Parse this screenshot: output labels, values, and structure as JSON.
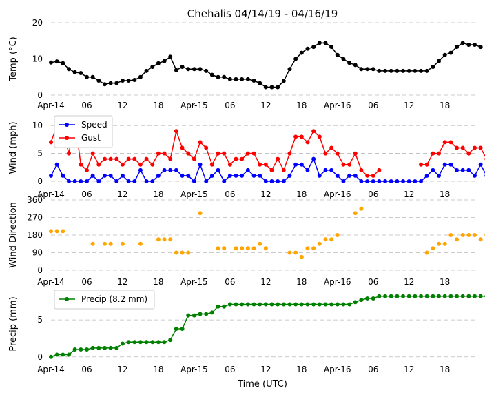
{
  "chart_data": {
    "title": "Chehalis 04/14/19 - 04/16/19",
    "xlabel": "Time (UTC)",
    "x_start": "2019-04-14 00:00",
    "x_end": "2019-04-16 23:00",
    "x_tick_labels": [
      "Apr-14",
      "06",
      "12",
      "18",
      "Apr-15",
      "06",
      "12",
      "18",
      "Apr-16",
      "06",
      "12",
      "18"
    ],
    "grid": "horizontal dashed",
    "panels": [
      {
        "id": "temp",
        "type": "line",
        "ylabel": "Temp ($^\\circ$C)",
        "ylabel_text": "Temp (°C)",
        "ylim": [
          0,
          20
        ],
        "yticks": [
          0,
          10,
          20
        ],
        "series": [
          {
            "color": "#000000",
            "values": [
              9,
              9.3,
              8.8,
              7.2,
              6.3,
              6.1,
              5,
              5,
              4,
              3,
              3.3,
              3.3,
              4,
              4,
              4.2,
              5,
              6.7,
              7.8,
              8.8,
              9.4,
              10.6,
              6.9,
              7.8,
              7.2,
              7.2,
              7.2,
              6.7,
              5.6,
              5,
              5,
              4.4,
              4.4,
              4.4,
              4.4,
              4,
              3.3,
              2.2,
              2.2,
              2.2,
              3.9,
              7.2,
              10,
              11.7,
              12.8,
              13.3,
              14.4,
              14.4,
              13.3,
              11.1,
              10,
              8.9,
              8.3,
              7.2,
              7.2,
              7.2,
              6.7,
              6.7,
              6.7,
              6.7,
              6.7,
              6.7,
              6.7,
              6.7,
              6.7,
              7.8,
              9.4,
              11.1,
              11.7,
              13.3,
              14.4,
              13.9,
              13.9,
              13.3
            ]
          }
        ]
      },
      {
        "id": "wind",
        "type": "line",
        "ylabel": "Wind (mph)",
        "ylim": [
          0,
          12
        ],
        "yticks": [
          0,
          5,
          10
        ],
        "legend": "top-left",
        "series": [
          {
            "name": "Speed",
            "color": "#0000ff",
            "values": [
              1,
              3,
              1,
              0,
              0,
              0,
              0,
              1,
              0,
              1,
              1,
              0,
              1,
              0,
              0,
              2,
              0,
              0,
              1,
              2,
              2,
              2,
              1,
              1,
              0,
              3,
              0,
              1,
              2,
              0,
              1,
              1,
              1,
              2,
              1,
              1,
              0,
              0,
              0,
              0,
              1,
              3,
              3,
              2,
              4,
              1,
              2,
              2,
              1,
              0,
              1,
              1,
              0,
              0,
              0,
              0,
              0,
              0,
              0,
              0,
              0,
              0,
              0,
              1,
              2,
              1,
              3,
              3,
              2,
              2,
              2,
              1,
              3,
              1
            ]
          },
          {
            "name": "Gust",
            "color": "#ff0000",
            "values": [
              7,
              10,
              9,
              5,
              11,
              3,
              2,
              5,
              3,
              4,
              4,
              4,
              3,
              4,
              4,
              3,
              4,
              3,
              5,
              5,
              4,
              9,
              6,
              5,
              4,
              7,
              6,
              3,
              5,
              5,
              3,
              4,
              4,
              5,
              5,
              3,
              3,
              2,
              4,
              2,
              5,
              8,
              8,
              7,
              9,
              8,
              5,
              6,
              5,
              3,
              3,
              5,
              2,
              1,
              1,
              2,
              null,
              null,
              null,
              null,
              null,
              null,
              3,
              3,
              5,
              5,
              7,
              7,
              6,
              6,
              5,
              6,
              6,
              4
            ]
          }
        ]
      },
      {
        "id": "dir",
        "type": "scatter",
        "ylabel": "Wind Direction",
        "ylim": [
          0,
          360
        ],
        "yticks": [
          0,
          90,
          180,
          270,
          360
        ],
        "series": [
          {
            "color": "#ffa500",
            "values": [
              200,
              200,
              200,
              null,
              null,
              null,
              null,
              135,
              null,
              135,
              135,
              null,
              135,
              null,
              null,
              135,
              null,
              null,
              158,
              158,
              158,
              90,
              90,
              90,
              null,
              292,
              null,
              null,
              112,
              112,
              null,
              112,
              112,
              112,
              112,
              135,
              112,
              null,
              null,
              null,
              90,
              90,
              68,
              112,
              112,
              135,
              158,
              158,
              180,
              null,
              null,
              292,
              315,
              null,
              null,
              null,
              null,
              null,
              null,
              null,
              null,
              null,
              null,
              90,
              112,
              135,
              135,
              180,
              158,
              180,
              180,
              180,
              158,
              180
            ]
          }
        ]
      },
      {
        "id": "precip",
        "type": "line",
        "ylabel": "Precip (mm)",
        "ylim": [
          -0.3,
          9.2
        ],
        "yticks": [
          0,
          5
        ],
        "legend": "top-left",
        "series": [
          {
            "name": "Precip (8.2 mm)",
            "color": "#008000",
            "values": [
              0,
              0.3,
              0.3,
              0.3,
              1,
              1,
              1,
              1.2,
              1.2,
              1.2,
              1.2,
              1.2,
              1.8,
              2,
              2,
              2,
              2,
              2,
              2,
              2,
              2.3,
              3.8,
              3.8,
              5.6,
              5.6,
              5.8,
              5.8,
              6,
              6.8,
              6.8,
              7.1,
              7.1,
              7.1,
              7.1,
              7.1,
              7.1,
              7.1,
              7.1,
              7.1,
              7.1,
              7.1,
              7.1,
              7.1,
              7.1,
              7.1,
              7.1,
              7.1,
              7.1,
              7.1,
              7.1,
              7.1,
              7.4,
              7.7,
              7.9,
              7.9,
              8.2,
              8.2,
              8.2,
              8.2,
              8.2,
              8.2,
              8.2,
              8.2,
              8.2,
              8.2,
              8.2,
              8.2,
              8.2,
              8.2,
              8.2,
              8.2,
              8.2,
              8.2,
              8.2
            ]
          }
        ]
      }
    ]
  }
}
